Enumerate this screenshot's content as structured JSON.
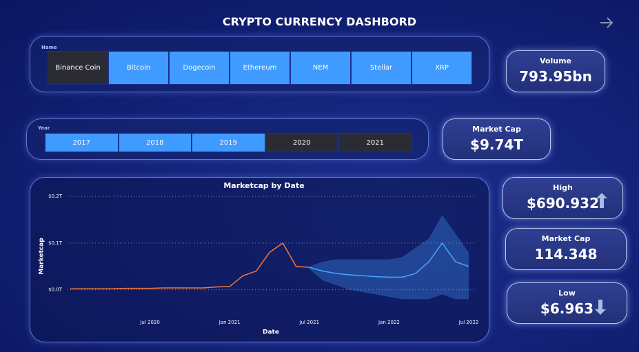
{
  "header": {
    "title": "CRYPTO CURRENCY DASHBORD"
  },
  "name_slicer": {
    "label": "Name",
    "options": [
      "Binance Coin",
      "Bitcoin",
      "Dogecoin",
      "Ethereum",
      "NEM",
      "Stellar",
      "XRP"
    ],
    "selected": [
      false,
      true,
      true,
      true,
      true,
      true,
      true
    ]
  },
  "year_slicer": {
    "label": "Year",
    "options": [
      "2017",
      "2018",
      "2019",
      "2020",
      "2021"
    ],
    "selected": [
      true,
      true,
      true,
      false,
      false
    ]
  },
  "cards": [
    {
      "label": "Volume",
      "value": "793.95bn"
    },
    {
      "label": "Market Cap",
      "value": "$9.74T"
    },
    {
      "label": "High",
      "value": "$690.932"
    },
    {
      "label": "Market Cap",
      "value": "114.348"
    },
    {
      "label": "Low",
      "value": "$6.963"
    }
  ],
  "chart": {
    "type": "line",
    "title": "Marketcap by Date",
    "x_label": "Date",
    "y_label": "Marketcap",
    "line_color": "#f07a3a",
    "forecast_color": "#4aa3ff",
    "xlim": [
      "2020-01",
      "2022-07"
    ],
    "xticks": [
      {
        "value": "2020-07",
        "label": "Jul 2020"
      },
      {
        "value": "2021-01",
        "label": "Jan 2021"
      },
      {
        "value": "2021-07",
        "label": "Jul 2021"
      },
      {
        "value": "2022-01",
        "label": "Jan 2022"
      },
      {
        "value": "2022-07",
        "label": "Jul 2022"
      }
    ],
    "ylim": [
      -0.03,
      0.2
    ],
    "yticks": [
      {
        "value": 0,
        "label": "$0.0T"
      },
      {
        "value": 0.1,
        "label": "$0.1T"
      },
      {
        "value": 0.2,
        "label": "$0.2T"
      }
    ],
    "x": [
      "2020-01",
      "2020-02",
      "2020-03",
      "2020-04",
      "2020-05",
      "2020-06",
      "2020-07",
      "2020-08",
      "2020-09",
      "2020-10",
      "2020-11",
      "2020-12",
      "2021-01",
      "2021-02",
      "2021-03",
      "2021-04",
      "2021-05",
      "2021-06",
      "2021-07"
    ],
    "values": [
      0.002,
      0.002,
      0.002,
      0.002,
      0.003,
      0.003,
      0.003,
      0.004,
      0.004,
      0.004,
      0.004,
      0.006,
      0.007,
      0.03,
      0.04,
      0.08,
      0.1,
      0.05,
      0.048
    ],
    "forecast_x": [
      "2021-07",
      "2021-08",
      "2021-09",
      "2021-10",
      "2021-11",
      "2021-12",
      "2022-01",
      "2022-02",
      "2022-03",
      "2022-04",
      "2022-05",
      "2022-06",
      "2022-07"
    ],
    "forecast": [
      0.048,
      0.04,
      0.035,
      0.032,
      0.03,
      0.028,
      0.027,
      0.027,
      0.035,
      0.06,
      0.1,
      0.06,
      0.05
    ],
    "forecast_lower": [
      0.045,
      0.02,
      0.01,
      0,
      -0.005,
      -0.01,
      -0.015,
      -0.02,
      -0.02,
      -0.02,
      -0.01,
      -0.02,
      -0.02
    ],
    "forecast_upper": [
      0.05,
      0.06,
      0.065,
      0.065,
      0.065,
      0.065,
      0.065,
      0.07,
      0.09,
      0.11,
      0.16,
      0.12,
      0.08
    ]
  }
}
